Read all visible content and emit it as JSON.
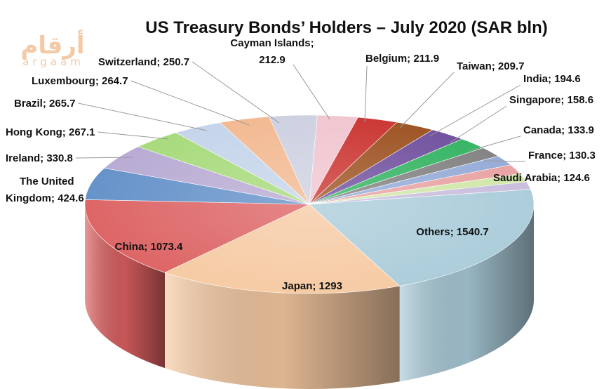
{
  "logo": {
    "arabic": "أرقام",
    "latin": "argaam"
  },
  "chart_data": {
    "type": "pie",
    "title": "US Treasury Bonds’ Holders – July 2020 (SAR bln)",
    "slices": [
      {
        "label": "Others",
        "value": 1540.7,
        "color": "#a9cbd9"
      },
      {
        "label": "Japan",
        "value": 1293,
        "color": "#f6c9a1"
      },
      {
        "label": "China",
        "value": 1073.4,
        "color": "#dc5f60"
      },
      {
        "label": "The United Kingdom",
        "value": 424.6,
        "color": "#5f8ec7"
      },
      {
        "label": "Ireland",
        "value": 330.8,
        "color": "#b6a8d2"
      },
      {
        "label": "Hong Kong",
        "value": 267.1,
        "color": "#a4d977"
      },
      {
        "label": "Brazil",
        "value": 265.7,
        "color": "#c3d3ea"
      },
      {
        "label": "Luxembourg",
        "value": 264.7,
        "color": "#f2b78e"
      },
      {
        "label": "Switzerland",
        "value": 250.7,
        "color": "#cccfe0"
      },
      {
        "label": "Cayman Islands",
        "value": 212.9,
        "color": "#f0c4ce"
      },
      {
        "label": "Belgium",
        "value": 211.9,
        "color": "#c9302c"
      },
      {
        "label": "Taiwan",
        "value": 209.7,
        "color": "#9a4e1c"
      },
      {
        "label": "India",
        "value": 194.6,
        "color": "#6d4c9c"
      },
      {
        "label": "Singapore",
        "value": 158.6,
        "color": "#2fb25e"
      },
      {
        "label": "Canada",
        "value": 133.9,
        "color": "#7f7f7f"
      },
      {
        "label": "France",
        "value": 130.3,
        "color": "#92a9d6"
      },
      {
        "label": "Saudi Arabia",
        "value": 124.6,
        "color": "#e8a0a0"
      },
      {
        "label": "",
        "value": 110,
        "color": "#cfe6a6"
      },
      {
        "label": "",
        "value": 100,
        "color": "#c7bcdc"
      }
    ]
  }
}
